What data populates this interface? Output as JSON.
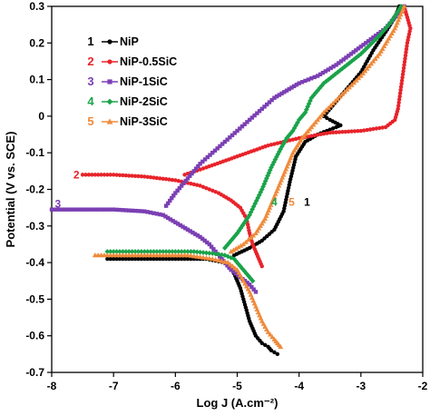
{
  "chart_data": {
    "type": "line",
    "xlabel": "Log J (A.cm⁻²)",
    "ylabel": "Potential (V vs. SCE)",
    "xlim": [
      -8,
      -2
    ],
    "ylim": [
      -0.7,
      0.3
    ],
    "xticks": [
      "-8",
      "-7",
      "-6",
      "-5",
      "-4",
      "-3",
      "-2"
    ],
    "yticks": [
      "-0.7",
      "-0.6",
      "-0.5",
      "-0.4",
      "-0.3",
      "-0.2",
      "-0.1",
      "0",
      "0.1",
      "0.2",
      "0.3"
    ],
    "grid": false,
    "legend_position": "top-left",
    "series": [
      {
        "name": "NiP",
        "number": "1",
        "color": "#000000",
        "marker": "circle",
        "x": [
          -7.1,
          -6.5,
          -5.9,
          -5.5,
          -5.2,
          -5.1,
          -5.05,
          -5.0,
          -4.95,
          -4.9,
          -4.85,
          -4.8,
          -4.75,
          -4.7,
          -4.6,
          -4.5,
          -4.45,
          -4.4,
          -4.35
        ],
        "y": [
          -0.39,
          -0.39,
          -0.39,
          -0.39,
          -0.4,
          -0.41,
          -0.43,
          -0.45,
          -0.47,
          -0.5,
          -0.53,
          -0.56,
          -0.58,
          -0.6,
          -0.62,
          -0.63,
          -0.64,
          -0.645,
          -0.65
        ],
        "anodic_x": [
          -5.05,
          -4.8,
          -4.6,
          -4.4,
          -4.25,
          -4.15,
          -4.05,
          -3.9,
          -3.7,
          -3.55,
          -3.4,
          -3.33,
          -3.5,
          -3.6,
          -3.55,
          -3.4,
          -3.2,
          -3.0,
          -2.8,
          -2.6,
          -2.45,
          -2.38
        ],
        "anodic_y": [
          -0.38,
          -0.36,
          -0.34,
          -0.31,
          -0.26,
          -0.18,
          -0.11,
          -0.07,
          -0.05,
          -0.04,
          -0.03,
          -0.025,
          -0.01,
          0.0,
          0.01,
          0.04,
          0.08,
          0.12,
          0.18,
          0.23,
          0.27,
          0.3
        ]
      },
      {
        "name": "NiP-0.5SiC",
        "number": "2",
        "color": "#e8232a",
        "marker": "circle",
        "x": [
          -7.5,
          -7.0,
          -6.5,
          -6.0,
          -5.6,
          -5.3,
          -5.1,
          -4.95,
          -4.85,
          -4.8,
          -4.75,
          -4.7,
          -4.65,
          -4.6
        ],
        "y": [
          -0.16,
          -0.16,
          -0.165,
          -0.175,
          -0.19,
          -0.21,
          -0.23,
          -0.25,
          -0.28,
          -0.32,
          -0.35,
          -0.37,
          -0.39,
          -0.41
        ],
        "anodic_x": [
          -5.85,
          -5.5,
          -5.0,
          -4.5,
          -4.0,
          -3.5,
          -3.0,
          -2.6,
          -2.45,
          -2.4,
          -2.35,
          -2.3,
          -2.25,
          -2.2,
          -2.25,
          -2.3
        ],
        "anodic_y": [
          -0.16,
          -0.14,
          -0.11,
          -0.08,
          -0.06,
          -0.045,
          -0.04,
          -0.03,
          -0.01,
          0.02,
          0.08,
          0.14,
          0.2,
          0.24,
          0.27,
          0.3
        ]
      },
      {
        "name": "NiP-1SiC",
        "number": "3",
        "color": "#7b3fb3",
        "marker": "square",
        "x": [
          -8.0,
          -7.5,
          -7.0,
          -6.5,
          -6.2,
          -6.0,
          -5.8,
          -5.6,
          -5.45,
          -5.35,
          -5.25,
          -5.1,
          -4.95,
          -4.8,
          -4.7
        ],
        "y": [
          -0.255,
          -0.255,
          -0.255,
          -0.26,
          -0.27,
          -0.29,
          -0.31,
          -0.33,
          -0.35,
          -0.37,
          -0.39,
          -0.42,
          -0.44,
          -0.46,
          -0.48
        ],
        "anodic_x": [
          -6.15,
          -6.0,
          -5.8,
          -5.6,
          -5.4,
          -5.2,
          -5.0,
          -4.8,
          -4.6,
          -4.4,
          -4.2,
          -4.0,
          -3.7,
          -3.4,
          -3.0,
          -2.6,
          -2.3
        ],
        "anodic_y": [
          -0.245,
          -0.21,
          -0.17,
          -0.13,
          -0.1,
          -0.07,
          -0.04,
          -0.01,
          0.02,
          0.05,
          0.07,
          0.09,
          0.11,
          0.14,
          0.19,
          0.24,
          0.3
        ]
      },
      {
        "name": "NiP-2SiC",
        "number": "4",
        "color": "#1aa34a",
        "marker": "diamond",
        "x": [
          -7.1,
          -6.6,
          -6.1,
          -5.7,
          -5.4,
          -5.2,
          -5.05,
          -4.95,
          -4.85,
          -4.75
        ],
        "y": [
          -0.37,
          -0.37,
          -0.37,
          -0.37,
          -0.375,
          -0.38,
          -0.39,
          -0.41,
          -0.43,
          -0.45
        ],
        "anodic_x": [
          -5.2,
          -5.0,
          -4.8,
          -4.6,
          -4.45,
          -4.3,
          -4.2,
          -4.1,
          -4.0,
          -3.9,
          -3.8,
          -3.6,
          -3.3,
          -3.0,
          -2.7,
          -2.5,
          -2.35
        ],
        "anodic_y": [
          -0.36,
          -0.32,
          -0.27,
          -0.2,
          -0.14,
          -0.09,
          -0.06,
          -0.04,
          -0.01,
          0.01,
          0.05,
          0.09,
          0.13,
          0.17,
          0.22,
          0.26,
          0.3
        ]
      },
      {
        "name": "NiP-3SiC",
        "number": "5",
        "color": "#f08a3a",
        "marker": "triangle",
        "x": [
          -7.3,
          -6.8,
          -6.3,
          -5.8,
          -5.4,
          -5.15,
          -5.0,
          -4.9,
          -4.8,
          -4.7,
          -4.6,
          -4.5,
          -4.4,
          -4.35,
          -4.3
        ],
        "y": [
          -0.38,
          -0.38,
          -0.38,
          -0.38,
          -0.39,
          -0.4,
          -0.42,
          -0.45,
          -0.48,
          -0.52,
          -0.56,
          -0.59,
          -0.61,
          -0.62,
          -0.63
        ],
        "anodic_x": [
          -5.1,
          -4.9,
          -4.7,
          -4.55,
          -4.4,
          -4.25,
          -4.1,
          -3.95,
          -3.8,
          -3.6,
          -3.3,
          -3.0,
          -2.7,
          -2.45,
          -2.3
        ],
        "anodic_y": [
          -0.37,
          -0.35,
          -0.32,
          -0.28,
          -0.22,
          -0.16,
          -0.1,
          -0.06,
          -0.03,
          0.01,
          0.06,
          0.11,
          0.17,
          0.24,
          0.3
        ]
      }
    ],
    "annotations": [
      {
        "text": "1",
        "x": -3.87,
        "y": -0.235,
        "color": "#000000"
      },
      {
        "text": "2",
        "x": -7.6,
        "y": -0.16,
        "color": "#e8232a"
      },
      {
        "text": "3",
        "x": -7.9,
        "y": -0.24,
        "color": "#7b3fb3"
      },
      {
        "text": "4",
        "x": -4.4,
        "y": -0.235,
        "color": "#1aa34a"
      },
      {
        "text": "5",
        "x": -4.12,
        "y": -0.235,
        "color": "#f08a3a"
      }
    ]
  }
}
